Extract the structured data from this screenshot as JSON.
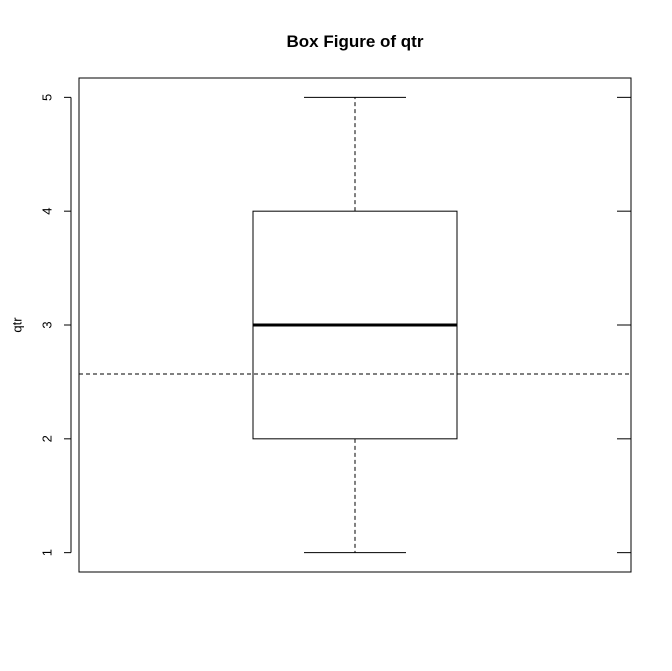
{
  "chart_data": {
    "type": "box",
    "title": "Box Figure of qtr",
    "ylabel": "qtr",
    "xlabel": "",
    "ylim": [
      0.83,
      5.17
    ],
    "yticks": [
      1,
      2,
      3,
      4,
      5
    ],
    "tick_labels": [
      "1",
      "2",
      "3",
      "4",
      "5"
    ],
    "box": {
      "min": 1,
      "q1": 2,
      "median": 3,
      "q3": 4,
      "max": 5
    },
    "reference_line": {
      "y": 2.57,
      "style": "dashed"
    },
    "grid": false,
    "colors": {
      "stroke": "#000000",
      "background": "#ffffff"
    }
  }
}
